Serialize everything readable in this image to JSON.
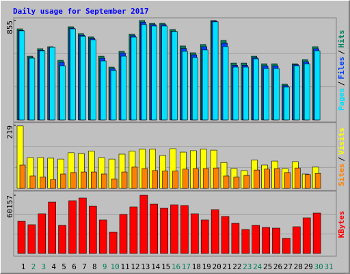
{
  "chart_data": {
    "type": "bar",
    "title": "Daily usage for September 2017",
    "categories": [
      "1",
      "2",
      "3",
      "4",
      "5",
      "6",
      "7",
      "8",
      "9",
      "10",
      "11",
      "12",
      "13",
      "14",
      "15",
      "16",
      "17",
      "18",
      "19",
      "20",
      "21",
      "22",
      "23",
      "24",
      "25",
      "26",
      "27",
      "28",
      "29",
      "30",
      "31"
    ],
    "category_colors": [
      "#000000",
      "#00805c",
      "#00805c",
      "#000000",
      "#000000",
      "#000000",
      "#000000",
      "#000000",
      "#00805c",
      "#00805c",
      "#000000",
      "#000000",
      "#000000",
      "#000000",
      "#000000",
      "#00805c",
      "#00805c",
      "#000000",
      "#000000",
      "#000000",
      "#000000",
      "#000000",
      "#00805c",
      "#00805c",
      "#000000",
      "#000000",
      "#000000",
      "#000000",
      "#000000",
      "#00805c",
      "#00805c"
    ],
    "separator": "/",
    "panels": [
      {
        "ylim": [
          0,
          855
        ],
        "yticks": [
          855
        ],
        "series": [
          {
            "name": "Hits",
            "color": "#00805c",
            "values": [
              784,
              548,
              613,
              630,
              513,
              802,
              743,
              714,
              548,
              454,
              590,
              737,
              855,
              831,
              831,
              778,
              637,
              578,
              649,
              855,
              684,
              489,
              489,
              548,
              483,
              483,
              307,
              483,
              519,
              630,
              null
            ]
          },
          {
            "name": "Files",
            "color": "#0040ff",
            "values": [
              770,
              535,
              600,
              620,
              495,
              790,
              730,
              700,
              530,
              440,
              575,
              725,
              840,
              820,
              820,
              765,
              615,
              560,
              630,
              850,
              660,
              470,
              470,
              535,
              465,
              465,
              295,
              475,
              500,
              612,
              null
            ]
          },
          {
            "name": "Pages",
            "color": "#00e0ff",
            "values": [
              767,
              531,
              595,
              625,
              466,
              784,
              719,
              690,
              507,
              425,
              548,
              713,
              820,
              808,
              808,
              761,
              590,
              537,
              602,
              844,
              631,
              454,
              454,
              525,
              442,
              442,
              283,
              466,
              483,
              595,
              null
            ]
          }
        ]
      },
      {
        "ylim": [
          0,
          219
        ],
        "yticks": [
          219
        ],
        "series": [
          {
            "name": "Visits",
            "color": "#ffff00",
            "values": [
              217,
              107,
              107,
              105,
              102,
              124,
              121,
              129,
              107,
              102,
              119,
              129,
              136,
              136,
              114,
              138,
              126,
              131,
              136,
              133,
              90,
              69,
              62,
              98,
              81,
              95,
              69,
              93,
              50,
              74,
              null
            ]
          },
          {
            "name": "Sites",
            "color": "#ff8000",
            "values": [
              81,
              43,
              40,
              31,
              50,
              55,
              57,
              57,
              50,
              33,
              57,
              74,
              69,
              62,
              60,
              60,
              67,
              69,
              69,
              71,
              43,
              40,
              45,
              64,
              67,
              69,
              55,
              71,
              48,
              52,
              null
            ]
          }
        ]
      },
      {
        "ylim": [
          0,
          60157
        ],
        "yticks": [
          60157
        ],
        "series": [
          {
            "name": "KBytes",
            "color": "#ff0000",
            "values": [
              33262,
              29724,
              41047,
              53078,
              29016,
              54493,
              57324,
              48831,
              34677,
              21939,
              40339,
              48124,
              60157,
              50955,
              46708,
              50247,
              49539,
              41047,
              34677,
              45293,
              38216,
              31139,
              24770,
              29016,
              26893,
              26185,
              15570,
              27601,
              36800,
              41755,
              null
            ]
          }
        ]
      }
    ]
  }
}
